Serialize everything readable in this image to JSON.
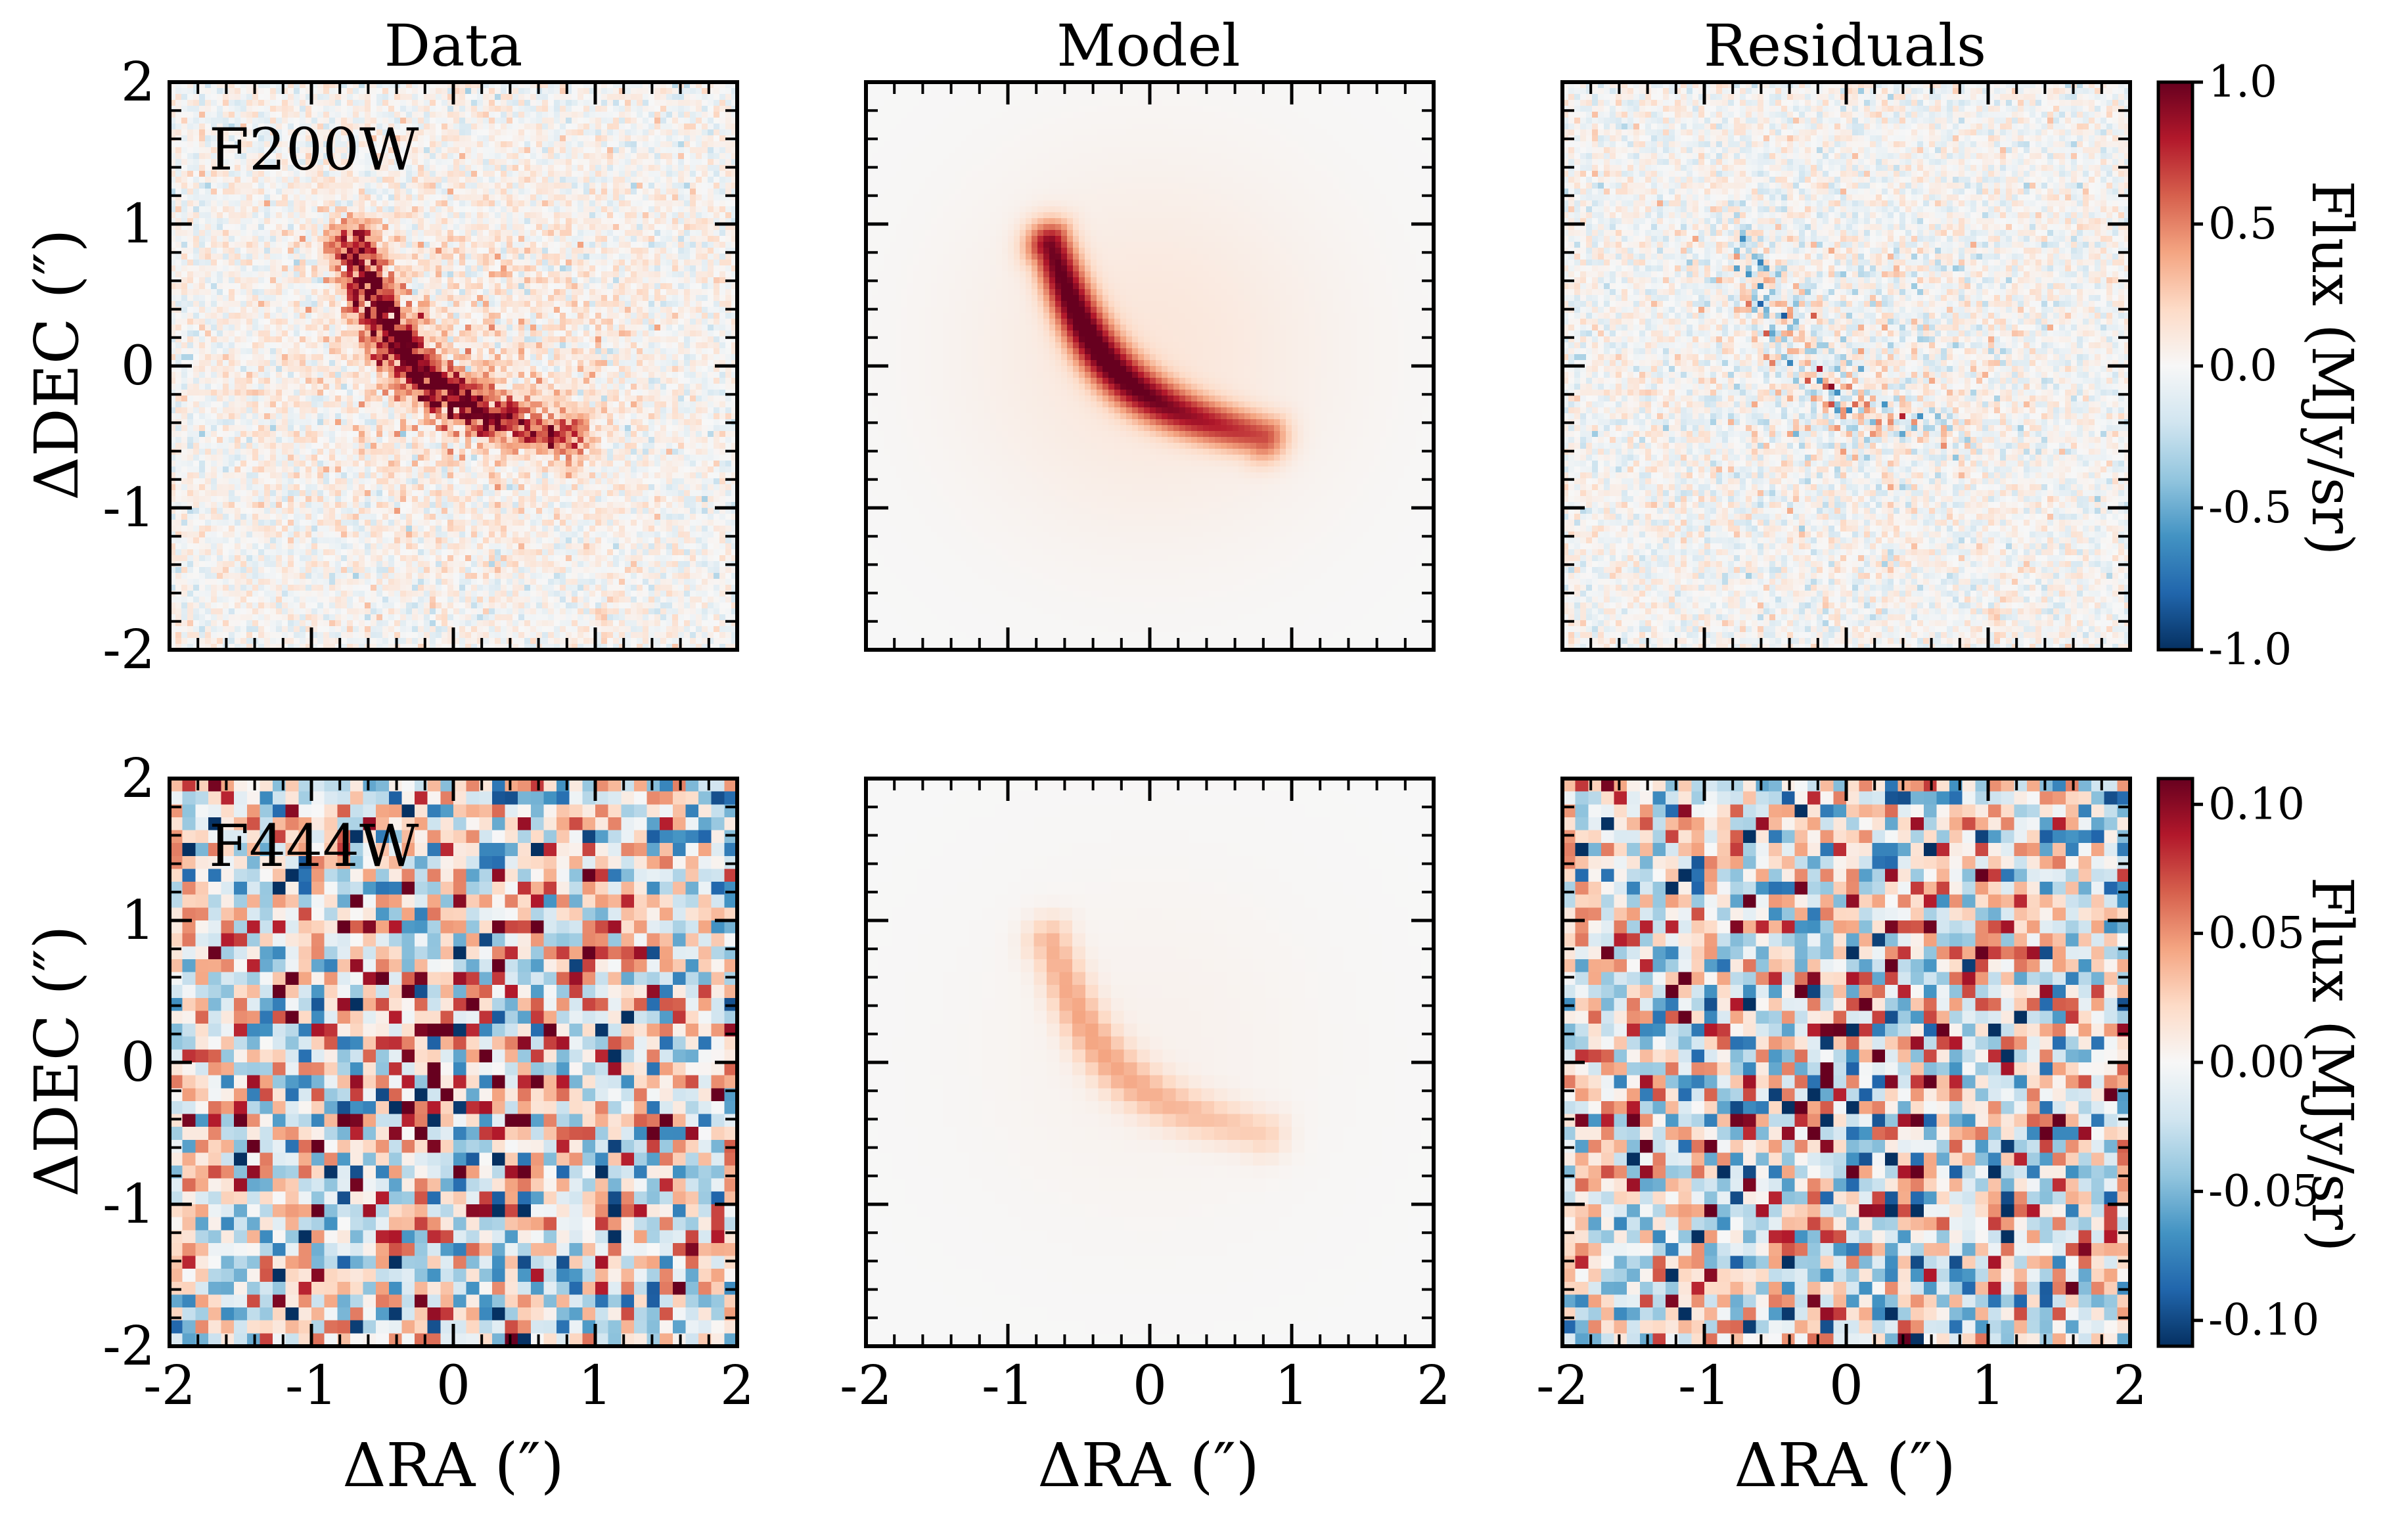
{
  "chart_data": {
    "type": "heatmap",
    "column_titles": [
      "Data",
      "Model",
      "Residuals"
    ],
    "x_axis_label": "ΔRA (″)",
    "y_axis_label": "ΔDEC (″)",
    "xlim": [
      -2,
      2
    ],
    "ylim": [
      -2,
      2
    ],
    "x_tick_labels": [
      "-2",
      "-1",
      "0",
      "1",
      "2"
    ],
    "y_tick_labels": [
      "2",
      "1",
      "0",
      "-1",
      "-2"
    ],
    "colormap": "RdBu_r",
    "colormap_stops": [
      "#053061",
      "#2166ac",
      "#4393c3",
      "#92c5de",
      "#d1e5f0",
      "#f7f7f7",
      "#fddbc7",
      "#f4a582",
      "#d6604d",
      "#b2182b",
      "#67001f"
    ],
    "rows": [
      {
        "band": "F200W",
        "colorbar_label": "Flux (MJy/sr)",
        "colorbar_range": [
          -1.0,
          1.0
        ],
        "colorbar_ticks": [
          "1.0",
          "0.5",
          "0.0",
          "-0.5",
          "-1.0"
        ],
        "colorbar_tick_values": [
          1.0,
          0.5,
          0.0,
          -0.5,
          -1.0
        ],
        "source": {
          "shape": "arc",
          "peak_flux": 1.0,
          "arc_from": [
            -0.7,
            0.85
          ],
          "arc_to": [
            0.8,
            -0.5
          ]
        }
      },
      {
        "band": "F444W",
        "colorbar_label": "Flux (MJy/sr)",
        "colorbar_range": [
          -0.11,
          0.11
        ],
        "colorbar_ticks": [
          "0.10",
          "0.05",
          "0.00",
          "-0.05",
          "-0.10"
        ],
        "colorbar_tick_values": [
          0.1,
          0.05,
          0.0,
          -0.05,
          -0.1
        ],
        "source": {
          "shape": "arc",
          "peak_flux": 0.04,
          "arc_from": [
            -0.7,
            0.85
          ],
          "arc_to": [
            0.8,
            -0.5
          ]
        }
      }
    ]
  }
}
